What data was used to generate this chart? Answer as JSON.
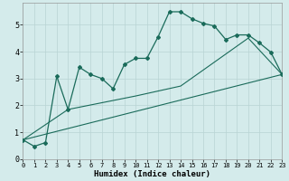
{
  "xlabel": "Humidex (Indice chaleur)",
  "bg_color": "#d4ebeb",
  "grid_color": "#b8d4d4",
  "line_color": "#1a6b5a",
  "line1_x": [
    0,
    1,
    2,
    3,
    4,
    5,
    6,
    7,
    8,
    9,
    10,
    11,
    12,
    13,
    14,
    15,
    16,
    17,
    18,
    19,
    20,
    21,
    22,
    23
  ],
  "line1_y": [
    0.72,
    0.48,
    0.62,
    3.08,
    1.85,
    3.42,
    3.15,
    3.0,
    2.62,
    3.52,
    3.75,
    3.75,
    4.55,
    5.48,
    5.48,
    5.22,
    5.05,
    4.95,
    4.45,
    4.62,
    4.62,
    4.32,
    3.98,
    3.15
  ],
  "line2_x": [
    0,
    23
  ],
  "line2_y": [
    0.72,
    3.15
  ],
  "line3_x": [
    0,
    4,
    10,
    14,
    20,
    23
  ],
  "line3_y": [
    0.72,
    1.85,
    2.35,
    2.72,
    4.5,
    3.15
  ],
  "xlim": [
    0,
    23
  ],
  "ylim": [
    0,
    5.8
  ],
  "xticks": [
    0,
    1,
    2,
    3,
    4,
    5,
    6,
    7,
    8,
    9,
    10,
    11,
    12,
    13,
    14,
    15,
    16,
    17,
    18,
    19,
    20,
    21,
    22,
    23
  ],
  "yticks": [
    0,
    1,
    2,
    3,
    4,
    5
  ],
  "figsize": [
    3.2,
    2.0
  ],
  "dpi": 100
}
